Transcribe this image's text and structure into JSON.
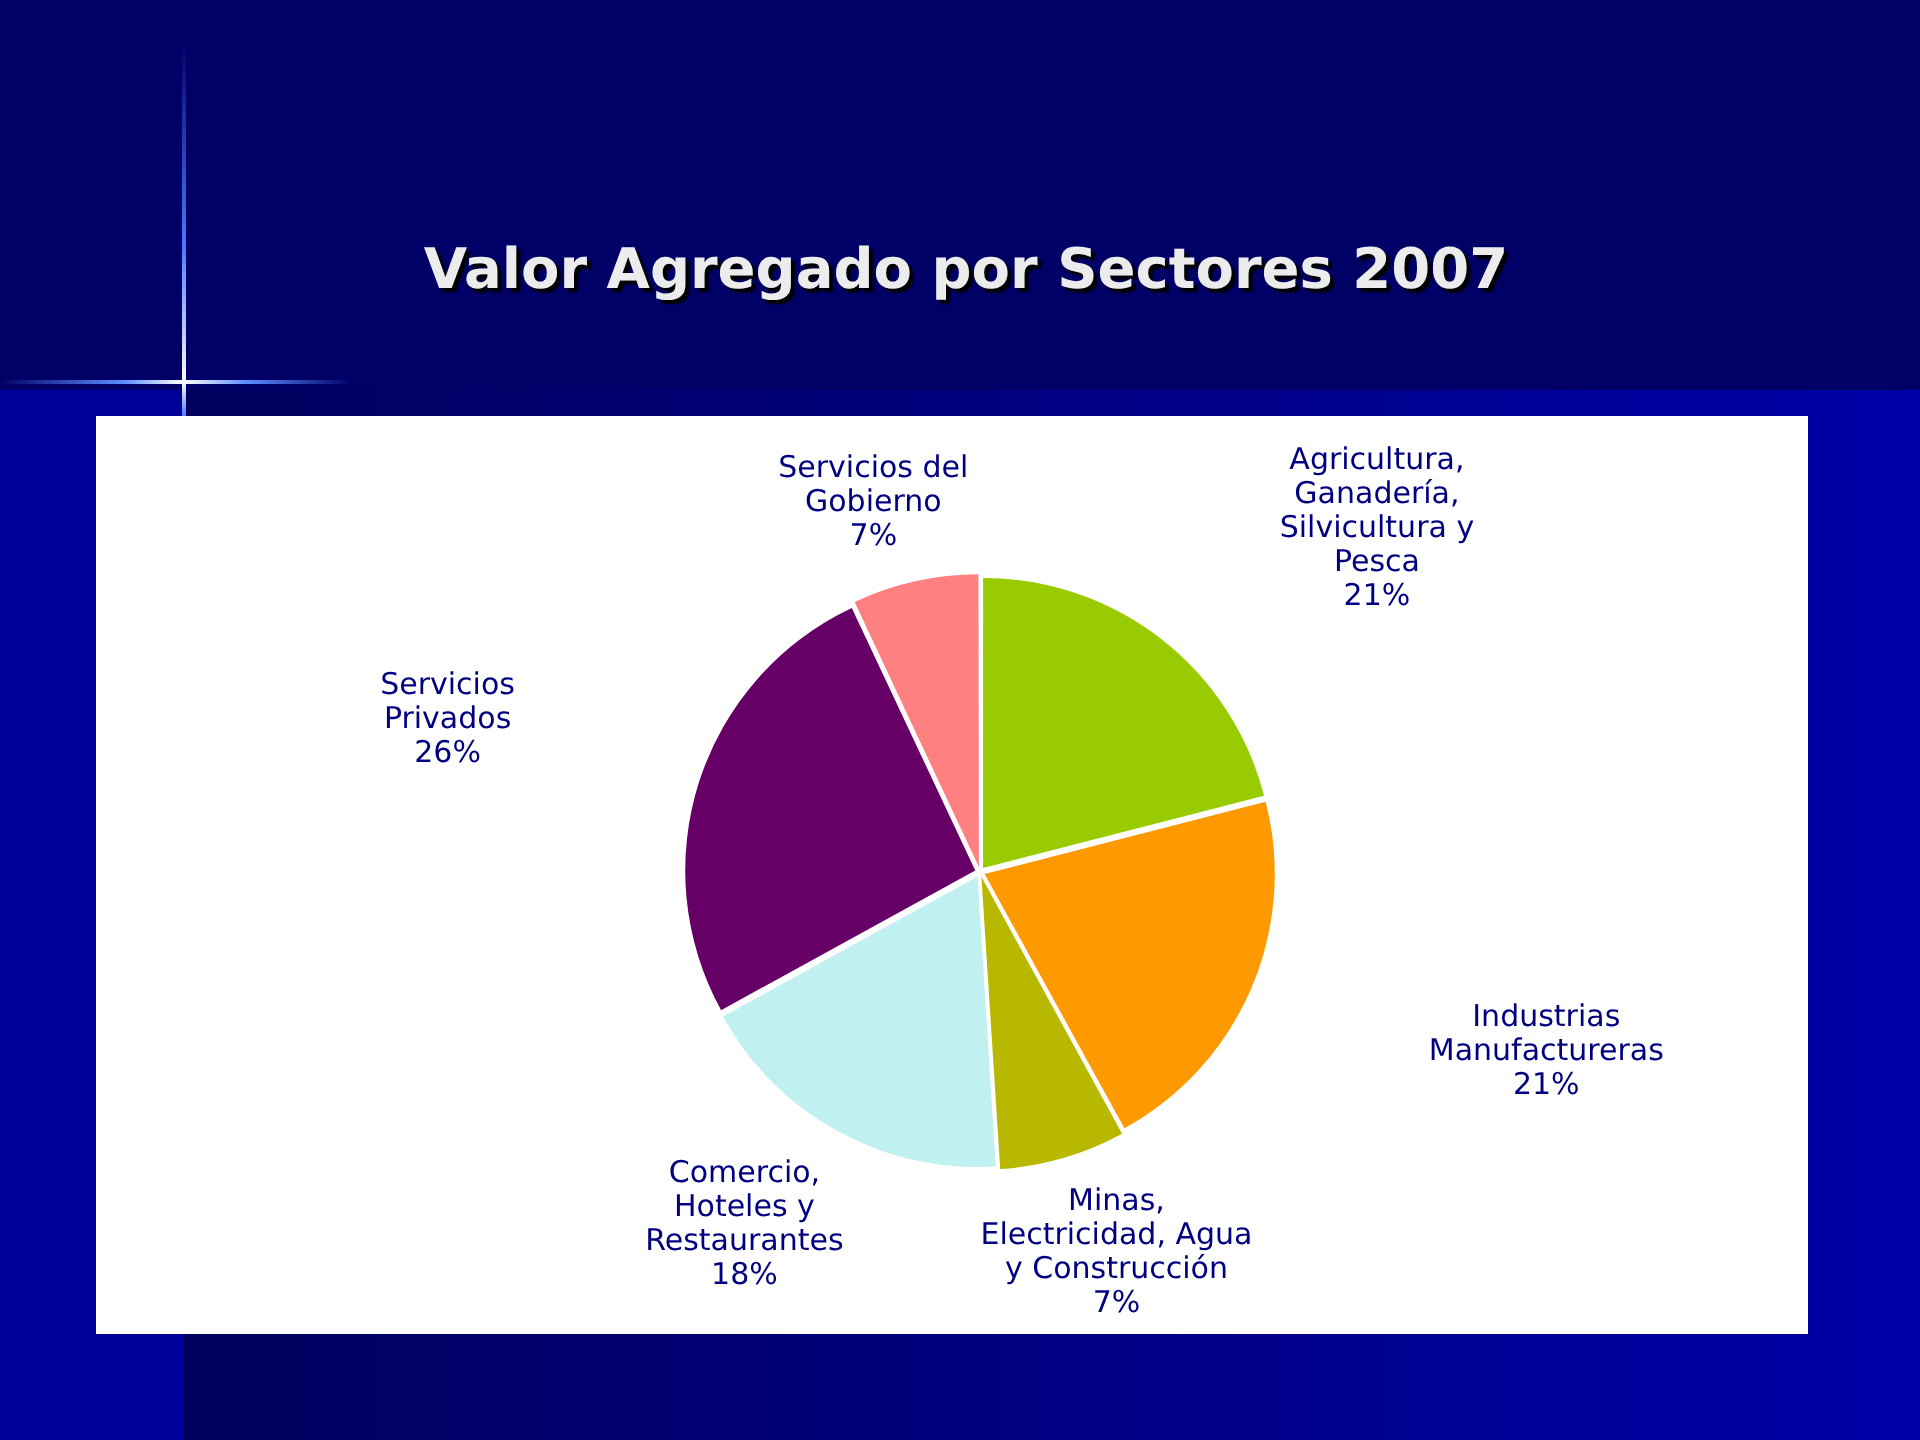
{
  "chart_data": {
    "type": "pie",
    "title": "Valor Agregado por Sectores 2007",
    "categories": [
      "Agricultura, Ganadería, Silvicultura y Pesca",
      "Industrias Manufactureras",
      "Minas, Electricidad, Agua y Construcción",
      "Comercio, Hoteles y Restaurantes",
      "Servicios Privados",
      "Servicios del Gobierno"
    ],
    "values": [
      21,
      21,
      7,
      18,
      26,
      7
    ],
    "value_labels": [
      "21%",
      "21%",
      "7%",
      "18%",
      "26%",
      "7%"
    ],
    "colors": [
      "#99cc00",
      "#ff9900",
      "#b8b800",
      "#c0f0f0",
      "#660066",
      "#ff8080"
    ]
  }
}
